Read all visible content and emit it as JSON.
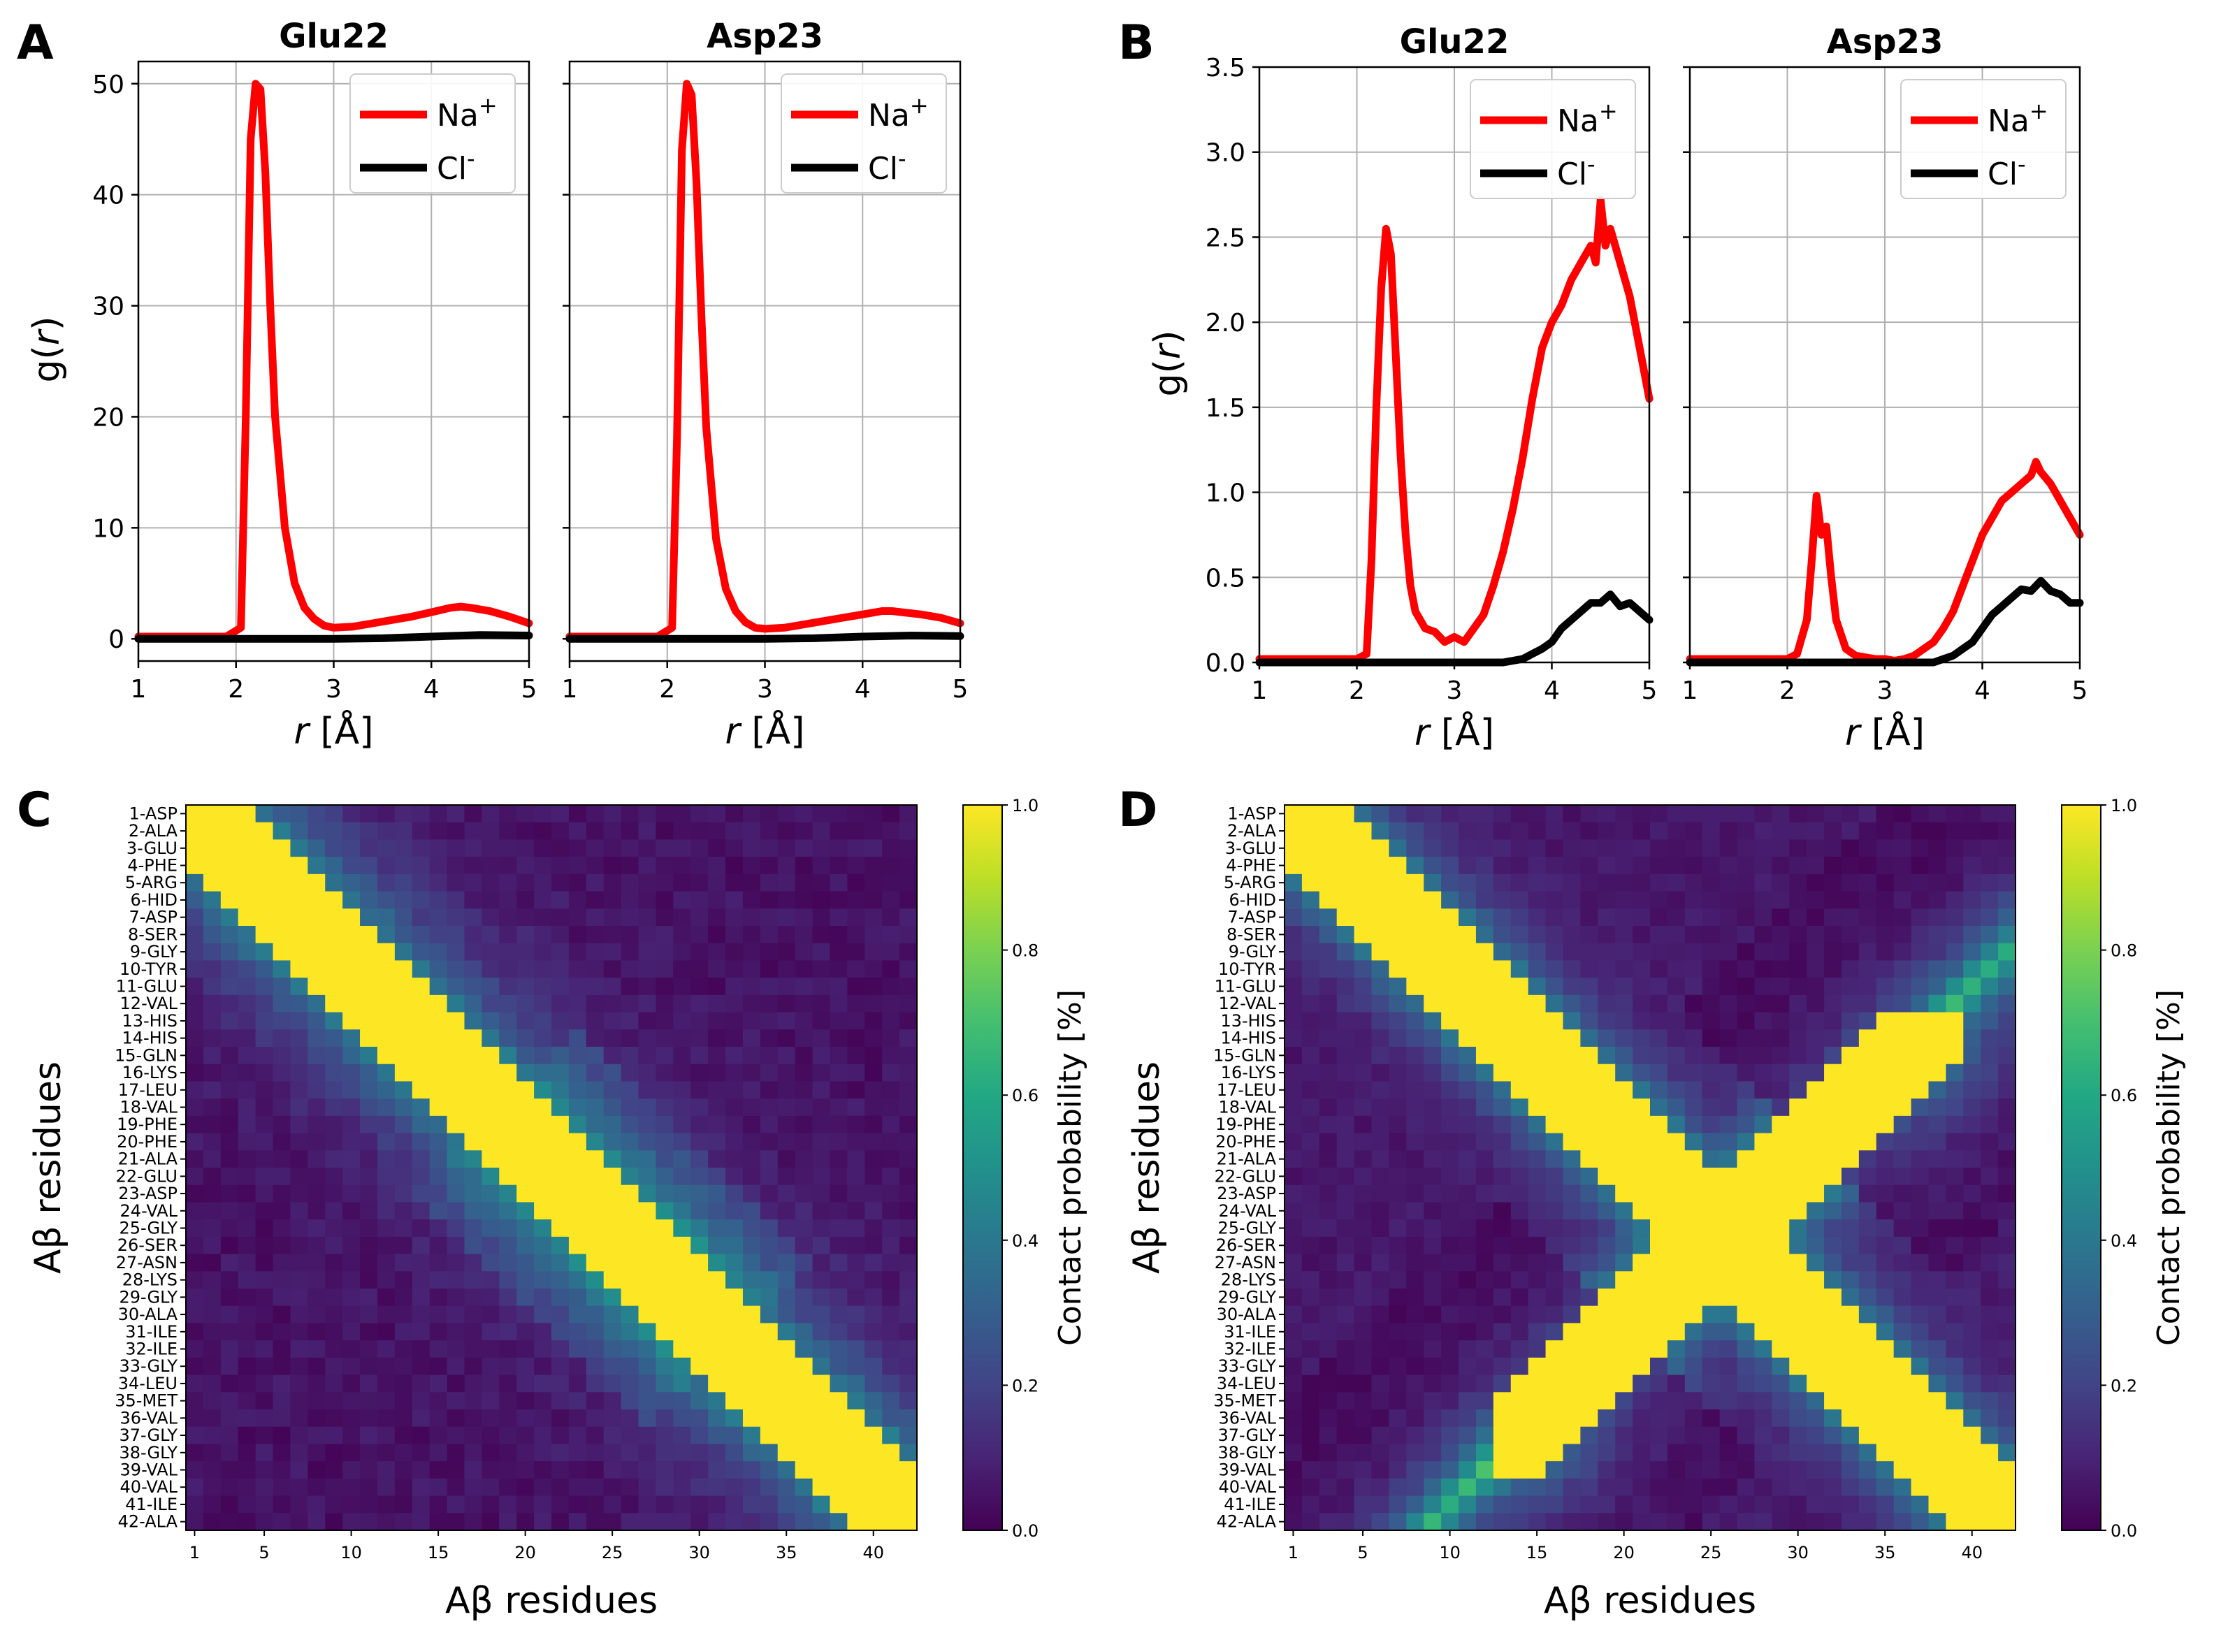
{
  "panels": {
    "A": {
      "letter": "A",
      "ylabel_main": "g(",
      "ylabel_var": "r",
      "ylabel_end": ")",
      "ylim": [
        -2,
        52
      ],
      "yticks": [
        0,
        10,
        20,
        30,
        40,
        50
      ],
      "subplots": [
        {
          "title": "Glu22"
        },
        {
          "title": "Asp23"
        }
      ]
    },
    "B": {
      "letter": "B",
      "ylabel_main": "g(",
      "ylabel_var": "r",
      "ylabel_end": ")",
      "ylim": [
        0,
        3.5
      ],
      "yticks": [
        "0.0",
        "0.5",
        "1.0",
        "1.5",
        "2.0",
        "2.5",
        "3.0",
        "3.5"
      ],
      "subplots": [
        {
          "title": "Glu22"
        },
        {
          "title": "Asp23"
        }
      ]
    },
    "C": {
      "letter": "C"
    },
    "D": {
      "letter": "D"
    }
  },
  "rdf_common": {
    "xlabel_var": "r",
    "xlabel_unit": " [Å]",
    "xticks": [
      1,
      2,
      3,
      4,
      5
    ],
    "xlim": [
      1,
      5
    ],
    "legend": [
      {
        "label": "Na",
        "sup": "+",
        "color": "#ff0000"
      },
      {
        "label": "Cl",
        "sup": "-",
        "color": "#000000"
      }
    ]
  },
  "map_common": {
    "xlabel": "Aβ residues",
    "ylabel": "Aβ residues",
    "colorbar_label": "Contact probability [%]",
    "colorbar_ticks": [
      "0.0",
      "0.2",
      "0.4",
      "0.6",
      "0.8",
      "1.0"
    ],
    "xticks": [
      1,
      5,
      10,
      15,
      20,
      25,
      30,
      35,
      40
    ],
    "residues": [
      "1-ASP",
      "2-ALA",
      "3-GLU",
      "4-PHE",
      "5-ARG",
      "6-HID",
      "7-ASP",
      "8-SER",
      "9-GLY",
      "10-TYR",
      "11-GLU",
      "12-VAL",
      "13-HIS",
      "14-HIS",
      "15-GLN",
      "16-LYS",
      "17-LEU",
      "18-VAL",
      "19-PHE",
      "20-PHE",
      "21-ALA",
      "22-GLU",
      "23-ASP",
      "24-VAL",
      "25-GLY",
      "26-SER",
      "27-ASN",
      "28-LYS",
      "29-GLY",
      "30-ALA",
      "31-ILE",
      "32-ILE",
      "33-GLY",
      "34-LEU",
      "35-MET",
      "36-VAL",
      "37-GLY",
      "38-GLY",
      "39-VAL",
      "40-VAL",
      "41-ILE",
      "42-ALA"
    ]
  },
  "chart_data": [
    {
      "type": "line",
      "panel": "A",
      "title": "Glu22",
      "xlabel": "r [Å]",
      "ylabel": "g(r)",
      "xlim": [
        1,
        5
      ],
      "ylim": [
        -2,
        52
      ],
      "series": [
        {
          "name": "Na+",
          "color": "#ff0000",
          "x": [
            1.0,
            1.9,
            2.05,
            2.1,
            2.15,
            2.2,
            2.25,
            2.3,
            2.35,
            2.4,
            2.5,
            2.6,
            2.7,
            2.8,
            2.9,
            3.0,
            3.2,
            3.4,
            3.6,
            3.8,
            4.0,
            4.2,
            4.3,
            4.4,
            4.6,
            4.8,
            5.0
          ],
          "y": [
            0.2,
            0.2,
            1.0,
            20.0,
            45.0,
            50.0,
            49.5,
            42.0,
            30.0,
            20.0,
            10.0,
            5.0,
            2.8,
            1.8,
            1.2,
            1.0,
            1.1,
            1.4,
            1.7,
            2.0,
            2.4,
            2.8,
            2.9,
            2.8,
            2.5,
            2.0,
            1.4
          ]
        },
        {
          "name": "Cl-",
          "color": "#000000",
          "x": [
            1.0,
            3.0,
            3.5,
            4.0,
            4.5,
            5.0
          ],
          "y": [
            0.0,
            0.0,
            0.05,
            0.2,
            0.35,
            0.3
          ]
        }
      ]
    },
    {
      "type": "line",
      "panel": "A",
      "title": "Asp23",
      "xlabel": "r [Å]",
      "ylabel": "g(r)",
      "xlim": [
        1,
        5
      ],
      "ylim": [
        -2,
        52
      ],
      "series": [
        {
          "name": "Na+",
          "color": "#ff0000",
          "x": [
            1.0,
            1.9,
            2.05,
            2.1,
            2.15,
            2.2,
            2.25,
            2.3,
            2.35,
            2.4,
            2.5,
            2.6,
            2.7,
            2.8,
            2.9,
            3.0,
            3.2,
            3.4,
            3.6,
            3.8,
            4.0,
            4.2,
            4.3,
            4.4,
            4.6,
            4.8,
            5.0
          ],
          "y": [
            0.2,
            0.2,
            1.0,
            18.0,
            44.0,
            50.0,
            49.0,
            41.0,
            29.0,
            19.0,
            9.0,
            4.5,
            2.5,
            1.5,
            1.0,
            0.9,
            1.0,
            1.3,
            1.6,
            1.9,
            2.2,
            2.5,
            2.5,
            2.4,
            2.2,
            1.9,
            1.4
          ]
        },
        {
          "name": "Cl-",
          "color": "#000000",
          "x": [
            1.0,
            3.0,
            3.5,
            4.0,
            4.5,
            5.0
          ],
          "y": [
            0.0,
            0.0,
            0.05,
            0.2,
            0.3,
            0.25
          ]
        }
      ]
    },
    {
      "type": "line",
      "panel": "B",
      "title": "Glu22",
      "xlabel": "r [Å]",
      "ylabel": "g(r)",
      "xlim": [
        1,
        5
      ],
      "ylim": [
        0,
        3.5
      ],
      "series": [
        {
          "name": "Na+",
          "color": "#ff0000",
          "x": [
            1.0,
            2.0,
            2.1,
            2.15,
            2.2,
            2.25,
            2.3,
            2.35,
            2.4,
            2.45,
            2.5,
            2.55,
            2.6,
            2.7,
            2.8,
            2.9,
            3.0,
            3.1,
            3.2,
            3.3,
            3.4,
            3.5,
            3.6,
            3.7,
            3.8,
            3.9,
            4.0,
            4.1,
            4.2,
            4.3,
            4.4,
            4.45,
            4.5,
            4.55,
            4.6,
            4.7,
            4.8,
            4.9,
            5.0
          ],
          "y": [
            0.02,
            0.02,
            0.05,
            0.6,
            1.5,
            2.2,
            2.55,
            2.4,
            1.8,
            1.2,
            0.75,
            0.45,
            0.3,
            0.2,
            0.18,
            0.12,
            0.15,
            0.12,
            0.2,
            0.28,
            0.45,
            0.65,
            0.9,
            1.2,
            1.55,
            1.85,
            2.0,
            2.1,
            2.25,
            2.35,
            2.45,
            2.35,
            2.72,
            2.45,
            2.55,
            2.35,
            2.15,
            1.85,
            1.55
          ]
        },
        {
          "name": "Cl-",
          "color": "#000000",
          "x": [
            1.0,
            3.5,
            3.7,
            3.8,
            3.9,
            4.0,
            4.1,
            4.2,
            4.3,
            4.4,
            4.5,
            4.6,
            4.7,
            4.8,
            4.9,
            5.0
          ],
          "y": [
            0.0,
            0.0,
            0.02,
            0.05,
            0.08,
            0.12,
            0.2,
            0.25,
            0.3,
            0.35,
            0.35,
            0.4,
            0.33,
            0.35,
            0.3,
            0.25
          ]
        }
      ]
    },
    {
      "type": "line",
      "panel": "B",
      "title": "Asp23",
      "xlabel": "r [Å]",
      "ylabel": "g(r)",
      "xlim": [
        1,
        5
      ],
      "ylim": [
        0,
        3.5
      ],
      "series": [
        {
          "name": "Na+",
          "color": "#ff0000",
          "x": [
            1.0,
            2.0,
            2.1,
            2.2,
            2.25,
            2.3,
            2.35,
            2.4,
            2.45,
            2.5,
            2.6,
            2.7,
            2.8,
            2.9,
            3.0,
            3.1,
            3.2,
            3.3,
            3.4,
            3.5,
            3.6,
            3.7,
            3.8,
            3.9,
            4.0,
            4.1,
            4.2,
            4.3,
            4.4,
            4.5,
            4.55,
            4.6,
            4.7,
            4.8,
            4.9,
            5.0
          ],
          "y": [
            0.02,
            0.02,
            0.05,
            0.25,
            0.6,
            0.98,
            0.75,
            0.8,
            0.5,
            0.25,
            0.08,
            0.04,
            0.03,
            0.02,
            0.02,
            0.01,
            0.02,
            0.04,
            0.08,
            0.12,
            0.2,
            0.3,
            0.45,
            0.6,
            0.75,
            0.85,
            0.95,
            1.0,
            1.05,
            1.1,
            1.18,
            1.12,
            1.05,
            0.95,
            0.85,
            0.75
          ]
        },
        {
          "name": "Cl-",
          "color": "#000000",
          "x": [
            1.0,
            3.5,
            3.6,
            3.7,
            3.8,
            3.9,
            4.0,
            4.1,
            4.2,
            4.3,
            4.4,
            4.5,
            4.6,
            4.7,
            4.8,
            4.9,
            5.0
          ],
          "y": [
            0.0,
            0.0,
            0.02,
            0.04,
            0.08,
            0.12,
            0.2,
            0.28,
            0.33,
            0.38,
            0.43,
            0.42,
            0.48,
            0.42,
            0.4,
            0.35,
            0.35
          ]
        }
      ]
    },
    {
      "type": "heatmap",
      "panel": "C",
      "title": "",
      "xlabel": "Aβ residues",
      "ylabel": "Aβ residues",
      "colorbar_label": "Contact probability [%]",
      "zlim": [
        0.0,
        1.0
      ],
      "n_residues": 42,
      "pattern": "single yellow diagonal band (contact ≈ 1.0 for |i-j| ≤ 3), teal/blue flanks near diagonal decaying to dark purple (~0.05) far from diagonal; weak cross features near residues 20-30"
    },
    {
      "type": "heatmap",
      "panel": "D",
      "title": "",
      "xlabel": "Aβ residues",
      "ylabel": "Aβ residues",
      "colorbar_label": "Contact probability [%]",
      "zlim": [
        0.0,
        1.0
      ],
      "n_residues": 42,
      "pattern": "X-shaped: yellow main diagonal plus yellow anti-diagonal crossing near residue 25 (i+j≈51), green/yellow-green patches near (15,38)/(38,15), dark purple (~0.02) diamond regions between arms"
    }
  ]
}
